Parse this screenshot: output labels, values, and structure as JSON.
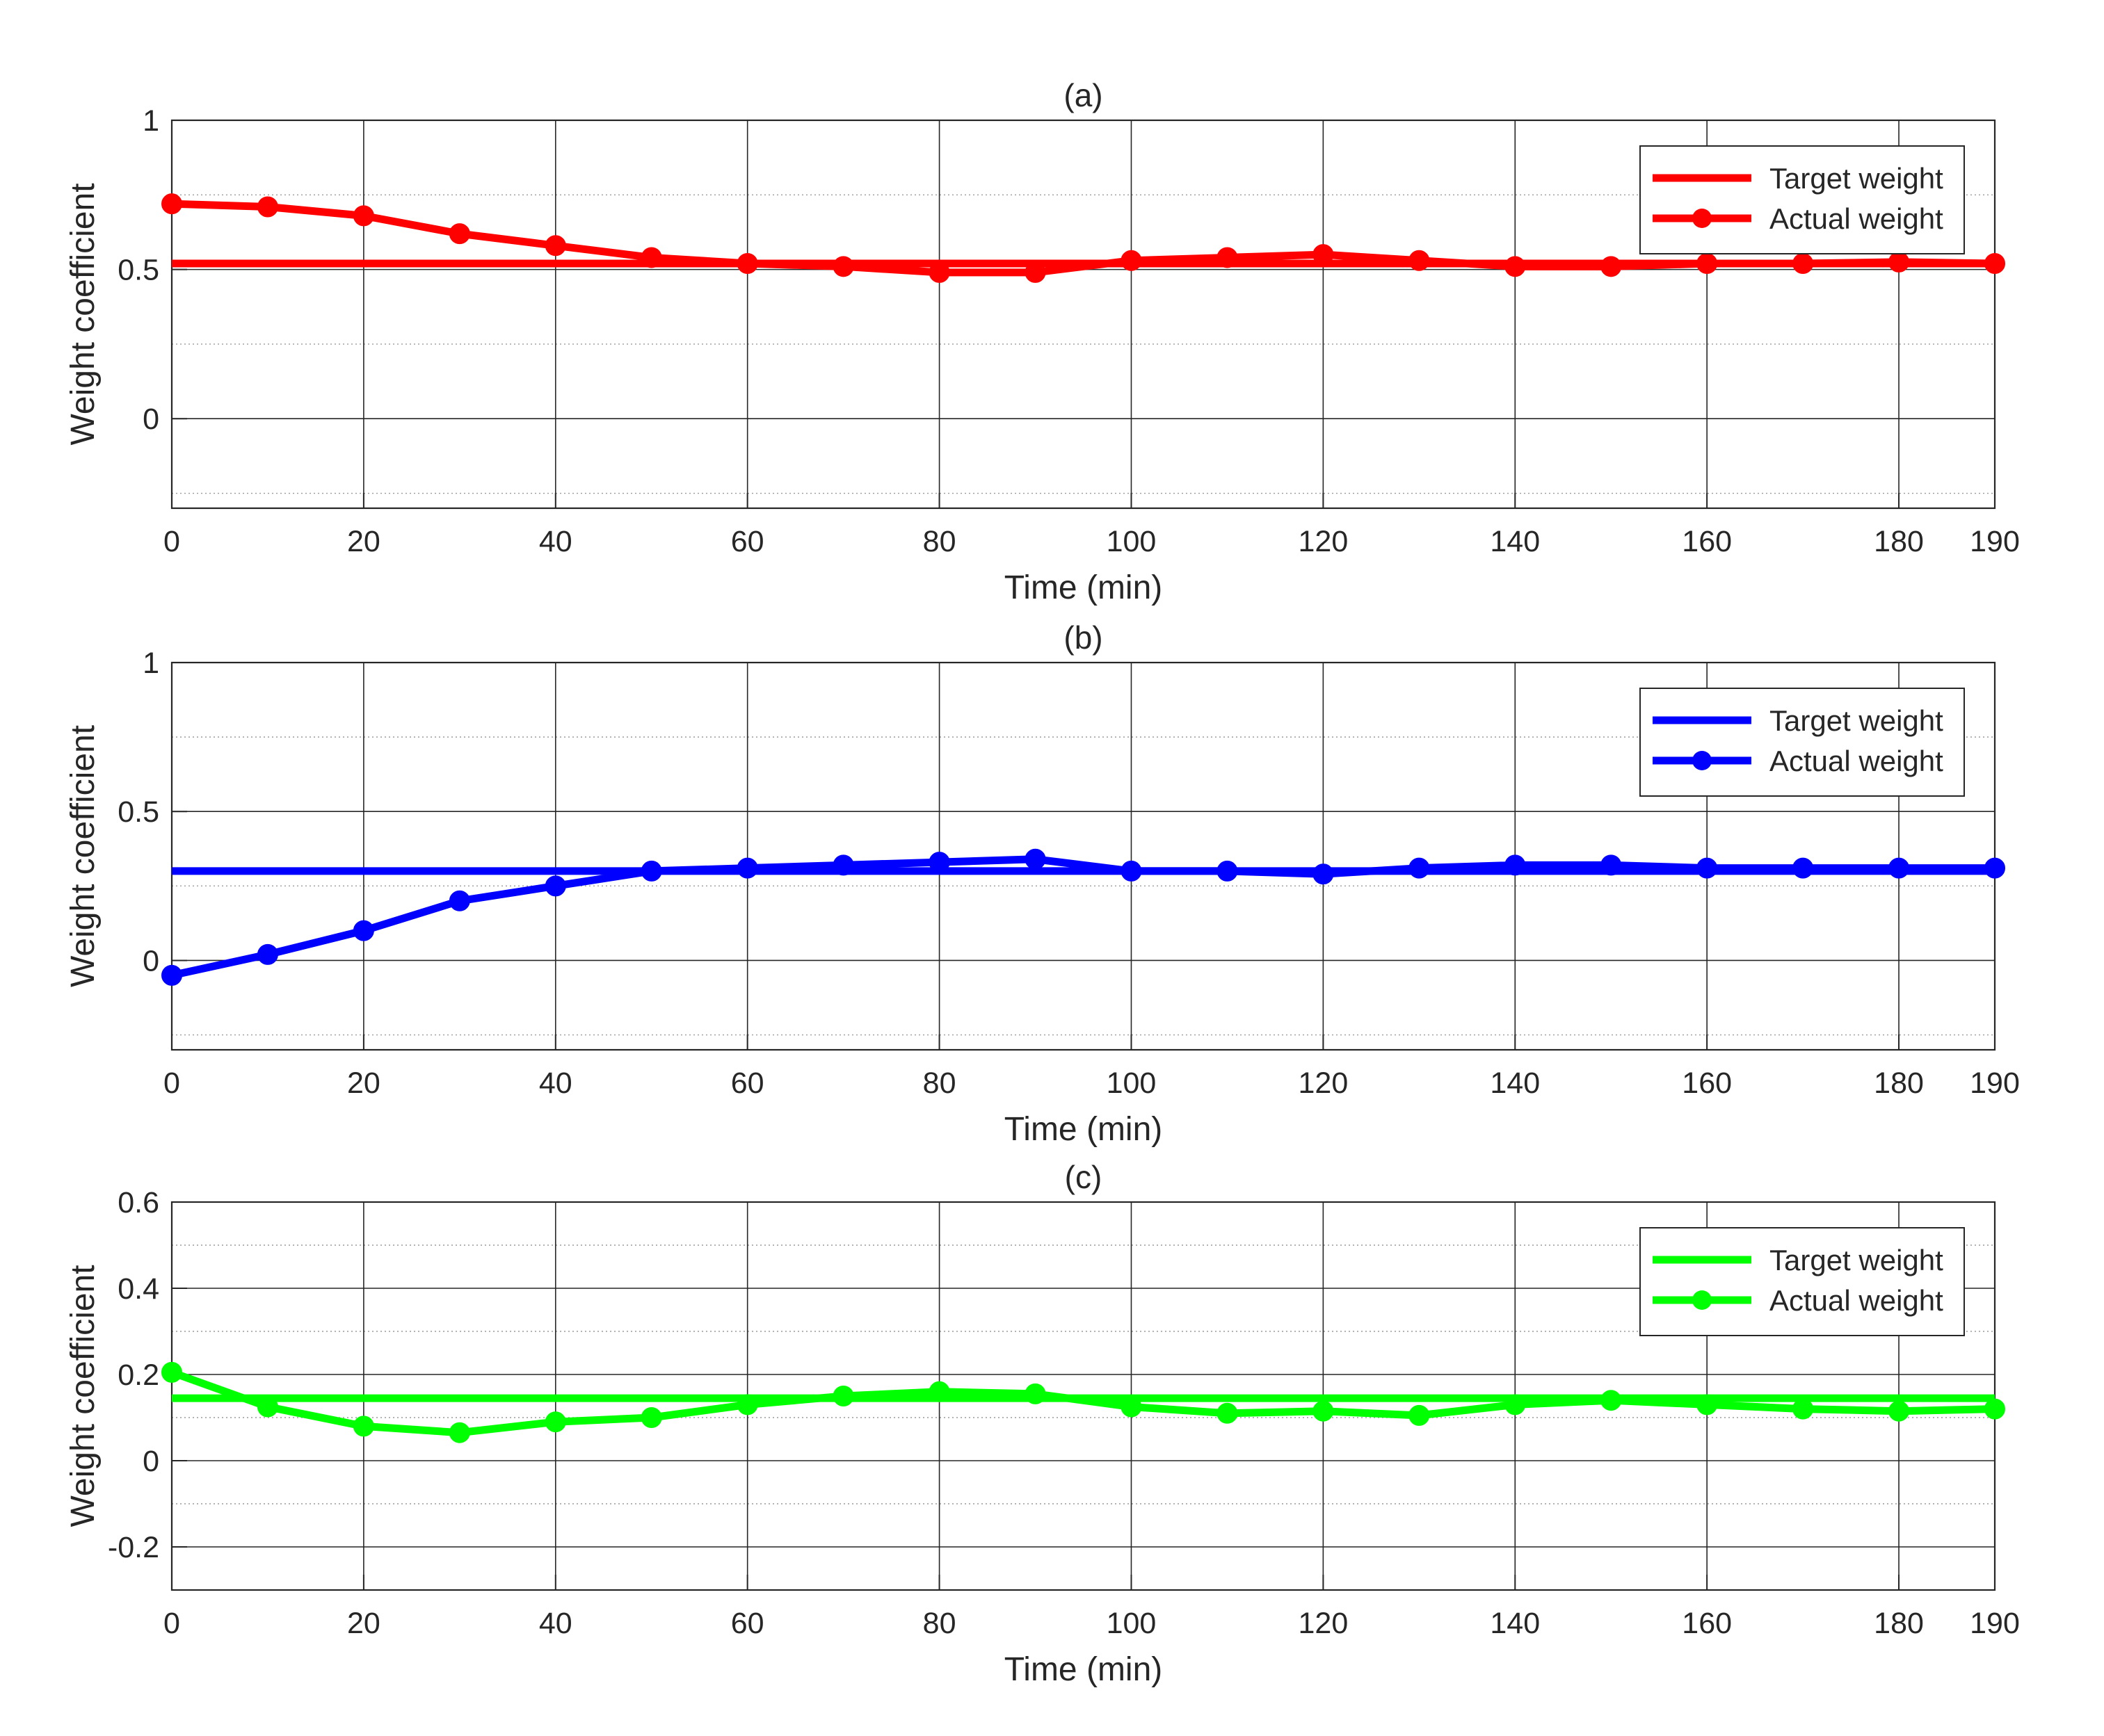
{
  "figure": {
    "background": "#ffffff"
  },
  "chart_data": [
    {
      "type": "line",
      "title": "(a)",
      "xlabel": "Time (min)",
      "ylabel": "Weight coefficient",
      "xlim": [
        0,
        190
      ],
      "ylim": [
        -0.3,
        1
      ],
      "xticks": [
        0,
        20,
        40,
        60,
        80,
        100,
        120,
        140,
        160,
        180,
        190
      ],
      "yticks": [
        0,
        0.5,
        1
      ],
      "ytick_labels": [
        "0",
        "0.5",
        "1"
      ],
      "minor_grid_y": [
        -0.25,
        0.25,
        0.75
      ],
      "grid": true,
      "color": "#ff0000",
      "legend": {
        "position": "top-right",
        "entries": [
          "Target weight",
          "Actual weight"
        ]
      },
      "x": [
        0,
        10,
        20,
        30,
        40,
        50,
        60,
        70,
        80,
        90,
        100,
        110,
        120,
        130,
        140,
        150,
        160,
        170,
        180,
        190
      ],
      "series": [
        {
          "name": "Target weight",
          "marker": false,
          "values": [
            0.52,
            0.52,
            0.52,
            0.52,
            0.52,
            0.52,
            0.52,
            0.52,
            0.52,
            0.52,
            0.52,
            0.52,
            0.52,
            0.52,
            0.52,
            0.52,
            0.52,
            0.52,
            0.52,
            0.52
          ]
        },
        {
          "name": "Actual weight",
          "marker": true,
          "values": [
            0.72,
            0.71,
            0.68,
            0.62,
            0.58,
            0.54,
            0.52,
            0.51,
            0.49,
            0.49,
            0.53,
            0.54,
            0.55,
            0.53,
            0.51,
            0.51,
            0.52,
            0.52,
            0.525,
            0.52
          ]
        }
      ]
    },
    {
      "type": "line",
      "title": "(b)",
      "xlabel": "Time (min)",
      "ylabel": "Weight coefficient",
      "xlim": [
        0,
        190
      ],
      "ylim": [
        -0.3,
        1
      ],
      "xticks": [
        0,
        20,
        40,
        60,
        80,
        100,
        120,
        140,
        160,
        180,
        190
      ],
      "yticks": [
        0,
        0.5,
        1
      ],
      "ytick_labels": [
        "0",
        "0.5",
        "1"
      ],
      "minor_grid_y": [
        -0.25,
        0.25,
        0.75
      ],
      "grid": true,
      "color": "#0000ff",
      "legend": {
        "position": "top-right",
        "entries": [
          "Target weight",
          "Actual weight"
        ]
      },
      "x": [
        0,
        10,
        20,
        30,
        40,
        50,
        60,
        70,
        80,
        90,
        100,
        110,
        120,
        130,
        140,
        150,
        160,
        170,
        180,
        190
      ],
      "series": [
        {
          "name": "Target weight",
          "marker": false,
          "values": [
            0.3,
            0.3,
            0.3,
            0.3,
            0.3,
            0.3,
            0.3,
            0.3,
            0.3,
            0.3,
            0.3,
            0.3,
            0.3,
            0.3,
            0.3,
            0.3,
            0.3,
            0.3,
            0.3,
            0.3
          ]
        },
        {
          "name": "Actual weight",
          "marker": true,
          "values": [
            -0.05,
            0.02,
            0.1,
            0.2,
            0.25,
            0.3,
            0.31,
            0.32,
            0.33,
            0.34,
            0.3,
            0.3,
            0.29,
            0.31,
            0.32,
            0.32,
            0.31,
            0.31,
            0.31,
            0.31
          ]
        }
      ]
    },
    {
      "type": "line",
      "title": "(c)",
      "xlabel": "Time (min)",
      "ylabel": "Weight coefficient",
      "xlim": [
        0,
        190
      ],
      "ylim": [
        -0.3,
        0.6
      ],
      "xticks": [
        0,
        20,
        40,
        60,
        80,
        100,
        120,
        140,
        160,
        180,
        190
      ],
      "yticks": [
        -0.2,
        0,
        0.2,
        0.4,
        0.6
      ],
      "ytick_labels": [
        "-0.2",
        "0",
        "0.2",
        "0.4",
        "0.6"
      ],
      "minor_grid_y": [
        -0.1,
        0.1,
        0.3,
        0.5
      ],
      "grid": true,
      "color": "#00ff00",
      "legend": {
        "position": "top-right",
        "entries": [
          "Target weight",
          "Actual weight"
        ]
      },
      "x": [
        0,
        10,
        20,
        30,
        40,
        50,
        60,
        70,
        80,
        90,
        100,
        110,
        120,
        130,
        140,
        150,
        160,
        170,
        180,
        190
      ],
      "series": [
        {
          "name": "Target weight",
          "marker": false,
          "values": [
            0.145,
            0.145,
            0.145,
            0.145,
            0.145,
            0.145,
            0.145,
            0.145,
            0.145,
            0.145,
            0.145,
            0.145,
            0.145,
            0.145,
            0.145,
            0.145,
            0.145,
            0.145,
            0.145,
            0.145
          ]
        },
        {
          "name": "Actual weight",
          "marker": true,
          "values": [
            0.205,
            0.125,
            0.08,
            0.065,
            0.09,
            0.1,
            0.13,
            0.15,
            0.16,
            0.155,
            0.125,
            0.11,
            0.115,
            0.105,
            0.13,
            0.14,
            0.13,
            0.12,
            0.115,
            0.12
          ]
        }
      ]
    }
  ]
}
